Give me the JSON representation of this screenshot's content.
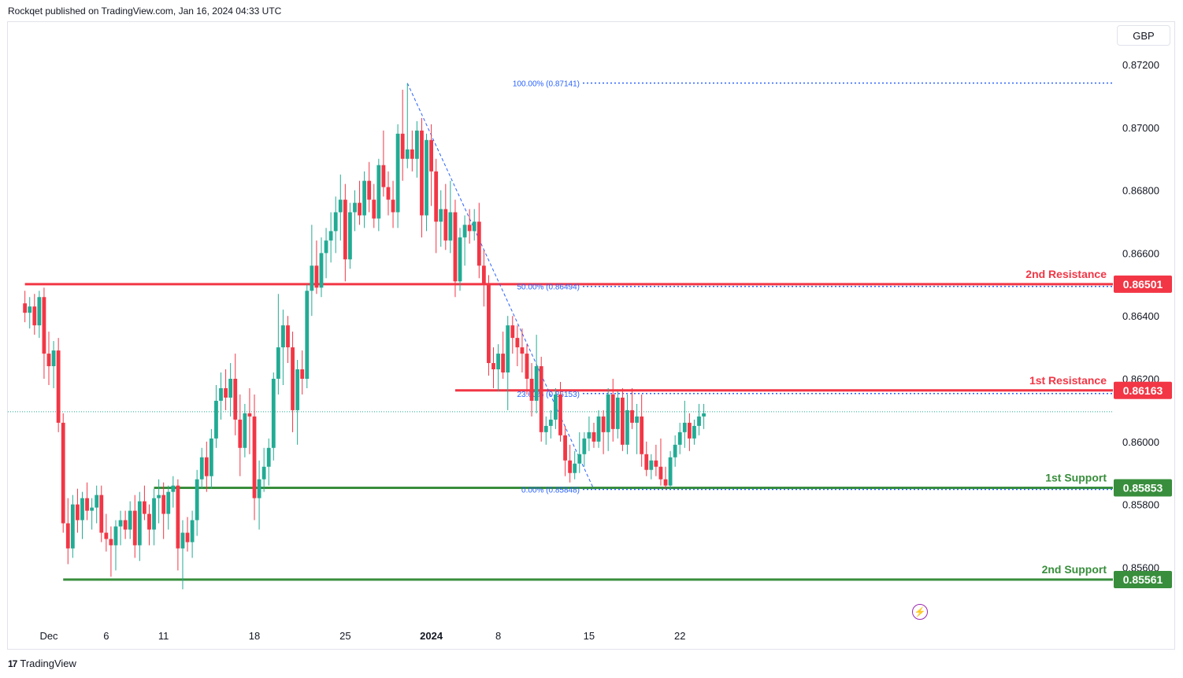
{
  "header": {
    "publisher_line": "Rockqet published on TradingView.com, Jan 16, 2024 04:33 UTC"
  },
  "footer": {
    "logo_text": "TradingView",
    "logo_mark": "17"
  },
  "currency": "GBP",
  "colors": {
    "up": "#22ab94",
    "down": "#f23645",
    "fib": "#2962ff",
    "resistance": "#f23645",
    "support": "#388e3c"
  },
  "chart_data": {
    "type": "candlestick",
    "symbol_currency": "GBP",
    "ylim": [
      0.855,
      0.873
    ],
    "y_ticks": [
      0.872,
      0.87,
      0.868,
      0.866,
      0.864,
      0.862,
      0.86,
      0.858,
      0.856
    ],
    "y_tick_labels": [
      "0.87200",
      "0.87000",
      "0.86800",
      "0.86600",
      "0.86400",
      "0.86200",
      "0.86000",
      "0.85800",
      "0.85600"
    ],
    "x_ticks": [
      {
        "label": "Dec",
        "index": 0,
        "bold": false
      },
      {
        "label": "6",
        "index": 12,
        "bold": false
      },
      {
        "label": "11",
        "index": 24,
        "bold": false
      },
      {
        "label": "18",
        "index": 43,
        "bold": false
      },
      {
        "label": "25",
        "index": 62,
        "bold": false
      },
      {
        "label": "2024",
        "index": 80,
        "bold": true
      },
      {
        "label": "8",
        "index": 94,
        "bold": false
      },
      {
        "label": "15",
        "index": 113,
        "bold": false
      },
      {
        "label": "22",
        "index": 132,
        "bold": false
      }
    ],
    "levels": [
      {
        "name": "2nd Resistance",
        "value": "0.86501",
        "price": 0.86501,
        "kind": "resistance",
        "from_index": -5
      },
      {
        "name": "1st Resistance",
        "value": "0.86163",
        "price": 0.86163,
        "kind": "resistance",
        "from_index": 85
      },
      {
        "name": "1st Support",
        "value": "0.85853",
        "price": 0.85853,
        "kind": "support",
        "from_index": 22
      },
      {
        "name": "2nd Support",
        "value": "0.85561",
        "price": 0.85561,
        "kind": "support",
        "from_index": 3
      }
    ],
    "fibonacci": [
      {
        "label": "100.00% (0.87141)",
        "price": 0.87141
      },
      {
        "label": "50.00% (0.86494)",
        "price": 0.86494
      },
      {
        "label": "23.60% (0.86153)",
        "price": 0.86153
      },
      {
        "label": "0.00% (0.85848)",
        "price": 0.85848
      }
    ],
    "fib_trend": {
      "from_index": 75,
      "from_price": 0.87141,
      "to_index": 114,
      "to_price": 0.85848
    },
    "last_price": 0.86095,
    "candles": [
      {
        "i": -5,
        "o": 0.8644,
        "h": 0.8648,
        "l": 0.8638,
        "c": 0.8641
      },
      {
        "i": -4,
        "o": 0.8641,
        "h": 0.8646,
        "l": 0.8636,
        "c": 0.8643
      },
      {
        "i": -3,
        "o": 0.8643,
        "h": 0.8647,
        "l": 0.8634,
        "c": 0.8637
      },
      {
        "i": -2,
        "o": 0.8637,
        "h": 0.8648,
        "l": 0.8633,
        "c": 0.8646
      },
      {
        "i": -1,
        "o": 0.8646,
        "h": 0.8649,
        "l": 0.862,
        "c": 0.8628
      },
      {
        "i": 0,
        "o": 0.8628,
        "h": 0.8635,
        "l": 0.8618,
        "c": 0.8624
      },
      {
        "i": 1,
        "o": 0.8624,
        "h": 0.8632,
        "l": 0.8617,
        "c": 0.8629
      },
      {
        "i": 2,
        "o": 0.8629,
        "h": 0.8633,
        "l": 0.8603,
        "c": 0.8606
      },
      {
        "i": 3,
        "o": 0.8606,
        "h": 0.8609,
        "l": 0.8571,
        "c": 0.8574
      },
      {
        "i": 4,
        "o": 0.8574,
        "h": 0.8582,
        "l": 0.8561,
        "c": 0.8566
      },
      {
        "i": 5,
        "o": 0.8566,
        "h": 0.8583,
        "l": 0.8563,
        "c": 0.858
      },
      {
        "i": 6,
        "o": 0.858,
        "h": 0.8585,
        "l": 0.8571,
        "c": 0.8575
      },
      {
        "i": 7,
        "o": 0.8575,
        "h": 0.8584,
        "l": 0.8569,
        "c": 0.8582
      },
      {
        "i": 8,
        "o": 0.8582,
        "h": 0.8587,
        "l": 0.8575,
        "c": 0.8578
      },
      {
        "i": 9,
        "o": 0.8578,
        "h": 0.8582,
        "l": 0.8572,
        "c": 0.8579
      },
      {
        "i": 10,
        "o": 0.8579,
        "h": 0.8586,
        "l": 0.8574,
        "c": 0.8583
      },
      {
        "i": 11,
        "o": 0.8583,
        "h": 0.8586,
        "l": 0.8568,
        "c": 0.8571
      },
      {
        "i": 12,
        "o": 0.8571,
        "h": 0.8577,
        "l": 0.8565,
        "c": 0.8569
      },
      {
        "i": 13,
        "o": 0.8569,
        "h": 0.8573,
        "l": 0.8557,
        "c": 0.8567
      },
      {
        "i": 14,
        "o": 0.8567,
        "h": 0.8575,
        "l": 0.8559,
        "c": 0.8573
      },
      {
        "i": 15,
        "o": 0.8573,
        "h": 0.8578,
        "l": 0.8567,
        "c": 0.8575
      },
      {
        "i": 16,
        "o": 0.8575,
        "h": 0.8578,
        "l": 0.8569,
        "c": 0.8572
      },
      {
        "i": 17,
        "o": 0.8572,
        "h": 0.8581,
        "l": 0.8569,
        "c": 0.8578
      },
      {
        "i": 18,
        "o": 0.8578,
        "h": 0.8583,
        "l": 0.8563,
        "c": 0.8567
      },
      {
        "i": 19,
        "o": 0.8567,
        "h": 0.8584,
        "l": 0.8562,
        "c": 0.8581
      },
      {
        "i": 20,
        "o": 0.8581,
        "h": 0.8586,
        "l": 0.8575,
        "c": 0.8577
      },
      {
        "i": 21,
        "o": 0.8577,
        "h": 0.858,
        "l": 0.8567,
        "c": 0.8572
      },
      {
        "i": 22,
        "o": 0.8572,
        "h": 0.8585,
        "l": 0.8567,
        "c": 0.8582
      },
      {
        "i": 23,
        "o": 0.8582,
        "h": 0.8588,
        "l": 0.8574,
        "c": 0.8583
      },
      {
        "i": 24,
        "o": 0.8583,
        "h": 0.8587,
        "l": 0.8569,
        "c": 0.8577
      },
      {
        "i": 25,
        "o": 0.8577,
        "h": 0.8586,
        "l": 0.8572,
        "c": 0.8584
      },
      {
        "i": 26,
        "o": 0.8584,
        "h": 0.8589,
        "l": 0.8579,
        "c": 0.8586
      },
      {
        "i": 27,
        "o": 0.8586,
        "h": 0.8588,
        "l": 0.8559,
        "c": 0.8566
      },
      {
        "i": 28,
        "o": 0.8566,
        "h": 0.8575,
        "l": 0.8553,
        "c": 0.8571
      },
      {
        "i": 29,
        "o": 0.8571,
        "h": 0.8576,
        "l": 0.8565,
        "c": 0.8568
      },
      {
        "i": 30,
        "o": 0.8568,
        "h": 0.8578,
        "l": 0.8563,
        "c": 0.8575
      },
      {
        "i": 31,
        "o": 0.8575,
        "h": 0.8591,
        "l": 0.857,
        "c": 0.8588
      },
      {
        "i": 32,
        "o": 0.8588,
        "h": 0.8598,
        "l": 0.8585,
        "c": 0.8595
      },
      {
        "i": 33,
        "o": 0.8595,
        "h": 0.86,
        "l": 0.8584,
        "c": 0.8589
      },
      {
        "i": 34,
        "o": 0.8589,
        "h": 0.8604,
        "l": 0.8585,
        "c": 0.8601
      },
      {
        "i": 35,
        "o": 0.8601,
        "h": 0.8618,
        "l": 0.8598,
        "c": 0.8613
      },
      {
        "i": 36,
        "o": 0.8613,
        "h": 0.8622,
        "l": 0.8607,
        "c": 0.8617
      },
      {
        "i": 37,
        "o": 0.8617,
        "h": 0.8623,
        "l": 0.861,
        "c": 0.8614
      },
      {
        "i": 38,
        "o": 0.8614,
        "h": 0.8625,
        "l": 0.8608,
        "c": 0.862
      },
      {
        "i": 39,
        "o": 0.862,
        "h": 0.8628,
        "l": 0.8602,
        "c": 0.8607
      },
      {
        "i": 40,
        "o": 0.8607,
        "h": 0.8615,
        "l": 0.8589,
        "c": 0.8598
      },
      {
        "i": 41,
        "o": 0.8598,
        "h": 0.8612,
        "l": 0.8595,
        "c": 0.8609
      },
      {
        "i": 42,
        "o": 0.8609,
        "h": 0.8617,
        "l": 0.8596,
        "c": 0.8608
      },
      {
        "i": 43,
        "o": 0.8608,
        "h": 0.8615,
        "l": 0.8575,
        "c": 0.8582
      },
      {
        "i": 44,
        "o": 0.8582,
        "h": 0.8594,
        "l": 0.8572,
        "c": 0.8588
      },
      {
        "i": 45,
        "o": 0.8588,
        "h": 0.8598,
        "l": 0.8584,
        "c": 0.8592
      },
      {
        "i": 46,
        "o": 0.8592,
        "h": 0.8601,
        "l": 0.8586,
        "c": 0.8598
      },
      {
        "i": 47,
        "o": 0.8598,
        "h": 0.8622,
        "l": 0.8594,
        "c": 0.862
      },
      {
        "i": 48,
        "o": 0.862,
        "h": 0.8647,
        "l": 0.8615,
        "c": 0.863
      },
      {
        "i": 49,
        "o": 0.863,
        "h": 0.8642,
        "l": 0.8618,
        "c": 0.8637
      },
      {
        "i": 50,
        "o": 0.8637,
        "h": 0.864,
        "l": 0.8625,
        "c": 0.863
      },
      {
        "i": 51,
        "o": 0.863,
        "h": 0.8635,
        "l": 0.8603,
        "c": 0.861
      },
      {
        "i": 52,
        "o": 0.861,
        "h": 0.8626,
        "l": 0.8599,
        "c": 0.8623
      },
      {
        "i": 53,
        "o": 0.8623,
        "h": 0.8629,
        "l": 0.8615,
        "c": 0.862
      },
      {
        "i": 54,
        "o": 0.862,
        "h": 0.865,
        "l": 0.8617,
        "c": 0.8648
      },
      {
        "i": 55,
        "o": 0.8648,
        "h": 0.8669,
        "l": 0.864,
        "c": 0.8656
      },
      {
        "i": 56,
        "o": 0.8656,
        "h": 0.8664,
        "l": 0.8647,
        "c": 0.8649
      },
      {
        "i": 57,
        "o": 0.8649,
        "h": 0.8665,
        "l": 0.8646,
        "c": 0.866
      },
      {
        "i": 58,
        "o": 0.866,
        "h": 0.8668,
        "l": 0.8652,
        "c": 0.8664
      },
      {
        "i": 59,
        "o": 0.8664,
        "h": 0.8673,
        "l": 0.8657,
        "c": 0.8667
      },
      {
        "i": 60,
        "o": 0.8667,
        "h": 0.8678,
        "l": 0.866,
        "c": 0.8673
      },
      {
        "i": 61,
        "o": 0.8673,
        "h": 0.8685,
        "l": 0.8664,
        "c": 0.8677
      },
      {
        "i": 62,
        "o": 0.8677,
        "h": 0.8682,
        "l": 0.8651,
        "c": 0.8658
      },
      {
        "i": 63,
        "o": 0.8658,
        "h": 0.8676,
        "l": 0.8655,
        "c": 0.8673
      },
      {
        "i": 64,
        "o": 0.8673,
        "h": 0.868,
        "l": 0.8667,
        "c": 0.8676
      },
      {
        "i": 65,
        "o": 0.8676,
        "h": 0.8683,
        "l": 0.8669,
        "c": 0.8672
      },
      {
        "i": 66,
        "o": 0.8672,
        "h": 0.8686,
        "l": 0.8668,
        "c": 0.8683
      },
      {
        "i": 67,
        "o": 0.8683,
        "h": 0.8689,
        "l": 0.8673,
        "c": 0.8677
      },
      {
        "i": 68,
        "o": 0.8677,
        "h": 0.8682,
        "l": 0.8668,
        "c": 0.8671
      },
      {
        "i": 69,
        "o": 0.8671,
        "h": 0.869,
        "l": 0.8667,
        "c": 0.8688
      },
      {
        "i": 70,
        "o": 0.8688,
        "h": 0.8699,
        "l": 0.8678,
        "c": 0.8681
      },
      {
        "i": 71,
        "o": 0.8681,
        "h": 0.8686,
        "l": 0.8672,
        "c": 0.8677
      },
      {
        "i": 72,
        "o": 0.8677,
        "h": 0.8683,
        "l": 0.8668,
        "c": 0.8673
      },
      {
        "i": 73,
        "o": 0.8673,
        "h": 0.8701,
        "l": 0.8668,
        "c": 0.8698
      },
      {
        "i": 74,
        "o": 0.8698,
        "h": 0.8712,
        "l": 0.8683,
        "c": 0.869
      },
      {
        "i": 75,
        "o": 0.869,
        "h": 0.8714,
        "l": 0.8687,
        "c": 0.8693
      },
      {
        "i": 76,
        "o": 0.8693,
        "h": 0.8699,
        "l": 0.8686,
        "c": 0.869
      },
      {
        "i": 77,
        "o": 0.869,
        "h": 0.8702,
        "l": 0.8684,
        "c": 0.8699
      },
      {
        "i": 78,
        "o": 0.8699,
        "h": 0.8703,
        "l": 0.8665,
        "c": 0.8672
      },
      {
        "i": 79,
        "o": 0.8672,
        "h": 0.8698,
        "l": 0.8667,
        "c": 0.8696
      },
      {
        "i": 80,
        "o": 0.8696,
        "h": 0.8701,
        "l": 0.8675,
        "c": 0.8686
      },
      {
        "i": 81,
        "o": 0.8686,
        "h": 0.869,
        "l": 0.866,
        "c": 0.867
      },
      {
        "i": 82,
        "o": 0.867,
        "h": 0.868,
        "l": 0.8662,
        "c": 0.8674
      },
      {
        "i": 83,
        "o": 0.8674,
        "h": 0.8682,
        "l": 0.8661,
        "c": 0.8664
      },
      {
        "i": 84,
        "o": 0.8664,
        "h": 0.8683,
        "l": 0.866,
        "c": 0.8673
      },
      {
        "i": 85,
        "o": 0.8673,
        "h": 0.8677,
        "l": 0.8646,
        "c": 0.8651
      },
      {
        "i": 86,
        "o": 0.8651,
        "h": 0.8668,
        "l": 0.8648,
        "c": 0.8665
      },
      {
        "i": 87,
        "o": 0.8665,
        "h": 0.8672,
        "l": 0.8656,
        "c": 0.8669
      },
      {
        "i": 88,
        "o": 0.8669,
        "h": 0.8674,
        "l": 0.8663,
        "c": 0.8667
      },
      {
        "i": 89,
        "o": 0.8667,
        "h": 0.8674,
        "l": 0.8664,
        "c": 0.867
      },
      {
        "i": 90,
        "o": 0.867,
        "h": 0.8676,
        "l": 0.8652,
        "c": 0.8656
      },
      {
        "i": 91,
        "o": 0.8656,
        "h": 0.8661,
        "l": 0.8643,
        "c": 0.865
      },
      {
        "i": 92,
        "o": 0.865,
        "h": 0.8653,
        "l": 0.8621,
        "c": 0.8625
      },
      {
        "i": 93,
        "o": 0.8625,
        "h": 0.863,
        "l": 0.8617,
        "c": 0.8623
      },
      {
        "i": 94,
        "o": 0.8623,
        "h": 0.8631,
        "l": 0.8616,
        "c": 0.8628
      },
      {
        "i": 95,
        "o": 0.8628,
        "h": 0.8635,
        "l": 0.862,
        "c": 0.8622
      },
      {
        "i": 96,
        "o": 0.8622,
        "h": 0.864,
        "l": 0.861,
        "c": 0.8637
      },
      {
        "i": 97,
        "o": 0.8637,
        "h": 0.864,
        "l": 0.8628,
        "c": 0.8633
      },
      {
        "i": 98,
        "o": 0.8633,
        "h": 0.8637,
        "l": 0.8624,
        "c": 0.863
      },
      {
        "i": 99,
        "o": 0.863,
        "h": 0.8636,
        "l": 0.8622,
        "c": 0.8628
      },
      {
        "i": 100,
        "o": 0.8628,
        "h": 0.8631,
        "l": 0.8615,
        "c": 0.862
      },
      {
        "i": 101,
        "o": 0.862,
        "h": 0.8625,
        "l": 0.8608,
        "c": 0.8613
      },
      {
        "i": 102,
        "o": 0.8613,
        "h": 0.8634,
        "l": 0.8609,
        "c": 0.8624
      },
      {
        "i": 103,
        "o": 0.8624,
        "h": 0.8627,
        "l": 0.86,
        "c": 0.8603
      },
      {
        "i": 104,
        "o": 0.8603,
        "h": 0.8608,
        "l": 0.8599,
        "c": 0.8605
      },
      {
        "i": 105,
        "o": 0.8605,
        "h": 0.861,
        "l": 0.8601,
        "c": 0.8607
      },
      {
        "i": 106,
        "o": 0.8607,
        "h": 0.8617,
        "l": 0.8604,
        "c": 0.8615
      },
      {
        "i": 107,
        "o": 0.8615,
        "h": 0.8619,
        "l": 0.86,
        "c": 0.8602
      },
      {
        "i": 108,
        "o": 0.8602,
        "h": 0.8605,
        "l": 0.8589,
        "c": 0.8594
      },
      {
        "i": 109,
        "o": 0.8594,
        "h": 0.8599,
        "l": 0.8587,
        "c": 0.859
      },
      {
        "i": 110,
        "o": 0.859,
        "h": 0.8597,
        "l": 0.8588,
        "c": 0.8593
      },
      {
        "i": 111,
        "o": 0.8593,
        "h": 0.8603,
        "l": 0.859,
        "c": 0.8596
      },
      {
        "i": 112,
        "o": 0.8596,
        "h": 0.8603,
        "l": 0.8592,
        "c": 0.8601
      },
      {
        "i": 113,
        "o": 0.8601,
        "h": 0.8608,
        "l": 0.8597,
        "c": 0.8603
      },
      {
        "i": 114,
        "o": 0.8603,
        "h": 0.8606,
        "l": 0.8598,
        "c": 0.86
      },
      {
        "i": 115,
        "o": 0.86,
        "h": 0.861,
        "l": 0.8598,
        "c": 0.8608
      },
      {
        "i": 116,
        "o": 0.8608,
        "h": 0.861,
        "l": 0.8596,
        "c": 0.8603
      },
      {
        "i": 117,
        "o": 0.8603,
        "h": 0.8617,
        "l": 0.8597,
        "c": 0.8615
      },
      {
        "i": 118,
        "o": 0.8615,
        "h": 0.862,
        "l": 0.86,
        "c": 0.8604
      },
      {
        "i": 119,
        "o": 0.8604,
        "h": 0.8616,
        "l": 0.8601,
        "c": 0.8614
      },
      {
        "i": 120,
        "o": 0.8614,
        "h": 0.8617,
        "l": 0.8597,
        "c": 0.8599
      },
      {
        "i": 121,
        "o": 0.8599,
        "h": 0.8615,
        "l": 0.8596,
        "c": 0.861
      },
      {
        "i": 122,
        "o": 0.861,
        "h": 0.8617,
        "l": 0.8604,
        "c": 0.8606
      },
      {
        "i": 123,
        "o": 0.8606,
        "h": 0.8612,
        "l": 0.8596,
        "c": 0.8608
      },
      {
        "i": 124,
        "o": 0.8608,
        "h": 0.8615,
        "l": 0.8592,
        "c": 0.8596
      },
      {
        "i": 125,
        "o": 0.8596,
        "h": 0.86,
        "l": 0.8589,
        "c": 0.8591
      },
      {
        "i": 126,
        "o": 0.8591,
        "h": 0.8596,
        "l": 0.8588,
        "c": 0.8594
      },
      {
        "i": 127,
        "o": 0.8594,
        "h": 0.8599,
        "l": 0.8589,
        "c": 0.8592
      },
      {
        "i": 128,
        "o": 0.8592,
        "h": 0.8601,
        "l": 0.8586,
        "c": 0.8588
      },
      {
        "i": 129,
        "o": 0.8588,
        "h": 0.8592,
        "l": 0.8585,
        "c": 0.8586
      },
      {
        "i": 130,
        "o": 0.8586,
        "h": 0.8597,
        "l": 0.8585,
        "c": 0.8595
      },
      {
        "i": 131,
        "o": 0.8595,
        "h": 0.8602,
        "l": 0.8592,
        "c": 0.8599
      },
      {
        "i": 132,
        "o": 0.8599,
        "h": 0.8606,
        "l": 0.8596,
        "c": 0.8603
      },
      {
        "i": 133,
        "o": 0.8603,
        "h": 0.8613,
        "l": 0.8598,
        "c": 0.8606
      },
      {
        "i": 134,
        "o": 0.8606,
        "h": 0.8609,
        "l": 0.8597,
        "c": 0.8601
      },
      {
        "i": 135,
        "o": 0.8601,
        "h": 0.8607,
        "l": 0.8599,
        "c": 0.8605
      },
      {
        "i": 136,
        "o": 0.8605,
        "h": 0.8612,
        "l": 0.8602,
        "c": 0.8608
      },
      {
        "i": 137,
        "o": 0.8608,
        "h": 0.8612,
        "l": 0.8604,
        "c": 0.8609
      }
    ]
  }
}
